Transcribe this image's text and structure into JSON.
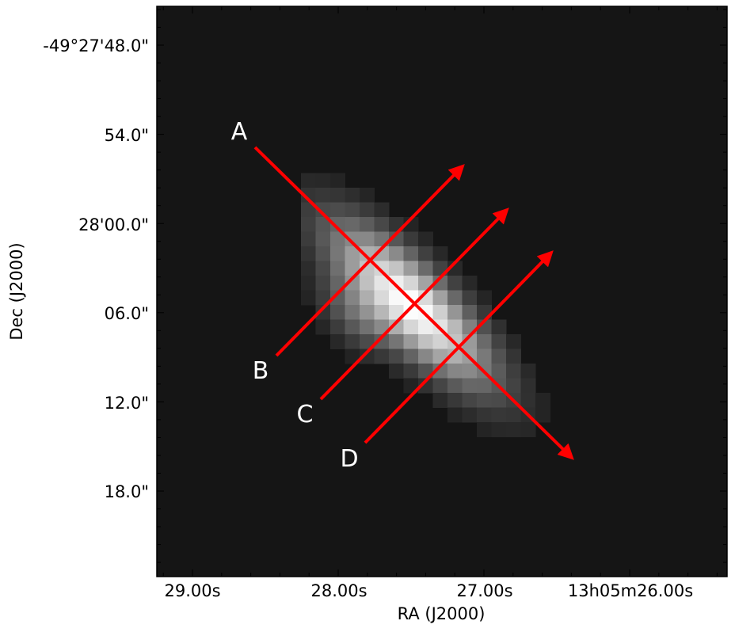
{
  "figure": {
    "xlabel": "RA (J2000)",
    "ylabel": "Dec (J2000)",
    "xticks": [
      "29.00s",
      "28.00s",
      "27.00s",
      "13h05m26.00s"
    ],
    "yticks": [
      "-49°27'48.0\"",
      "54.0\"",
      "28'00.0\"",
      "06.0\"",
      "12.0\"",
      "18.0\""
    ],
    "cuts": [
      {
        "label": "A"
      },
      {
        "label": "B"
      },
      {
        "label": "C"
      },
      {
        "label": "D"
      }
    ]
  }
}
